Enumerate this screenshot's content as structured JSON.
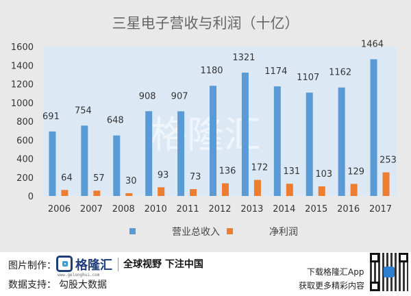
{
  "chart_data": {
    "type": "bar",
    "title": "三星电子营收与利润（十亿）",
    "categories": [
      "2006",
      "2007",
      "2008",
      "2010",
      "2011",
      "2012",
      "2013",
      "2014",
      "2015",
      "2016",
      "2017"
    ],
    "series": [
      {
        "name": "营业总收入",
        "color": "#5b9bd5",
        "values": [
          691,
          754,
          648,
          908,
          907,
          1180,
          1321,
          1174,
          1107,
          1162,
          1464
        ]
      },
      {
        "name": "净利润",
        "color": "#ed7d31",
        "values": [
          64,
          57,
          30,
          93,
          73,
          136,
          172,
          131,
          103,
          129,
          253
        ]
      }
    ],
    "yticks": [
      0,
      200,
      400,
      600,
      800,
      1000,
      1200,
      1400,
      1600
    ],
    "ylim": [
      0,
      1600
    ],
    "grid": false,
    "legend": "bottom",
    "plot_background": "#dce9f5",
    "watermark": "格隆汇"
  },
  "footer": {
    "credit_label": "图片制作：",
    "data_label": "数据支持：",
    "data_source": "勾股大数据",
    "logo_name": "格隆汇",
    "logo_sub": "www.gelonghui.com",
    "slogan": "全球视野 下注中国",
    "download": "下载格隆汇App",
    "more": "获取更多精彩内容"
  }
}
